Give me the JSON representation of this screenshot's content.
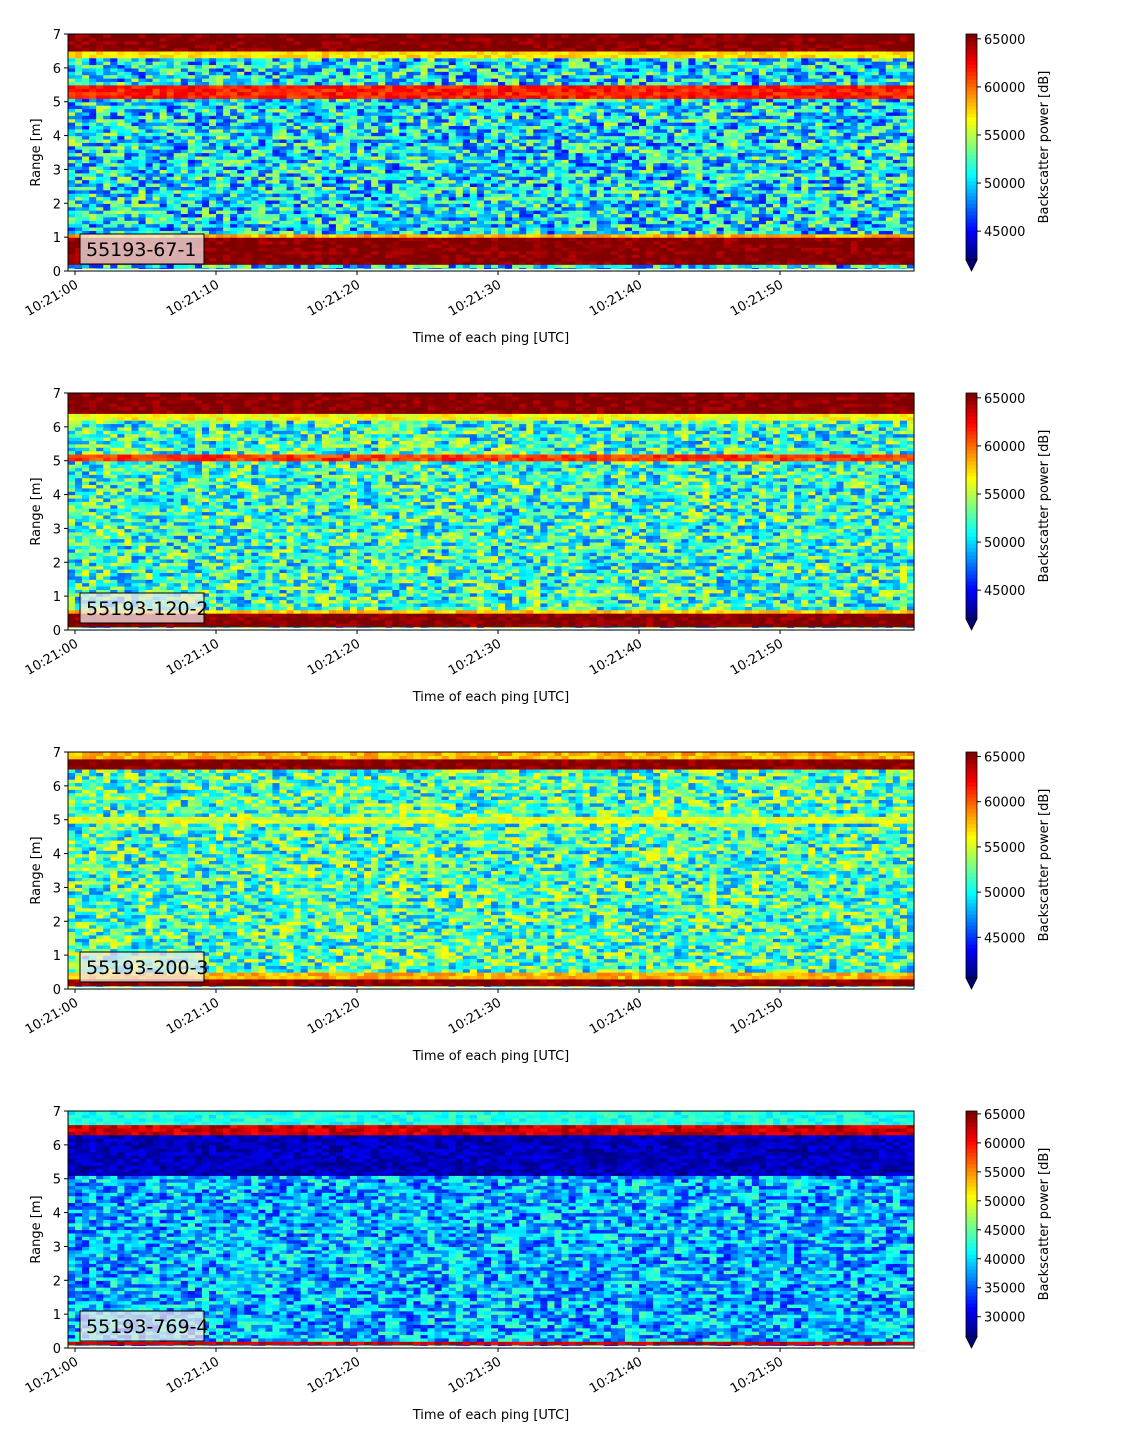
{
  "colors": {
    "jet_low": "#00007f",
    "jet_blue": "#0000ff",
    "jet_cyan": "#00ffff",
    "jet_yellow": "#ffff00",
    "jet_red": "#ff0000",
    "jet_high": "#7f0000",
    "label_box_bg": "#f3e8e8"
  },
  "chart_data": [
    {
      "type": "heatmap",
      "panel_label": "55193-67-1",
      "xlabel": "Time of each ping [UTC]",
      "ylabel": "Range [m]",
      "x_ticks": [
        "10:21:00",
        "10:21:10",
        "10:21:20",
        "10:21:30",
        "10:21:40",
        "10:21:50"
      ],
      "xlim_seconds_past": [
        0,
        59.5
      ],
      "ylim": [
        0,
        7
      ],
      "y_ticks": [
        0,
        1,
        2,
        3,
        4,
        5,
        6,
        7
      ],
      "colorbar": {
        "label": "Backscatter power [dB]",
        "ticks": [
          45000,
          50000,
          55000,
          60000,
          65000
        ],
        "range": [
          42000,
          65500
        ],
        "extend": "min"
      },
      "bands": [
        {
          "from": 0.25,
          "to": 1.05,
          "level": 1.0
        },
        {
          "from": 1.05,
          "to": 1.15,
          "level": 0.7
        },
        {
          "from": 5.15,
          "to": 5.55,
          "level": 0.85
        },
        {
          "from": 6.45,
          "to": 7.0,
          "level": 1.0
        },
        {
          "from": 6.3,
          "to": 6.45,
          "level": 0.65
        }
      ],
      "background_mean": 0.36,
      "background_spread": 0.22
    },
    {
      "type": "heatmap",
      "panel_label": "55193-120-2",
      "xlabel": "Time of each ping [UTC]",
      "ylabel": "Range [m]",
      "x_ticks": [
        "10:21:00",
        "10:21:10",
        "10:21:20",
        "10:21:30",
        "10:21:40",
        "10:21:50"
      ],
      "xlim_seconds_past": [
        0,
        59.5
      ],
      "ylim": [
        0,
        7
      ],
      "y_ticks": [
        0,
        1,
        2,
        3,
        4,
        5,
        6,
        7
      ],
      "colorbar": {
        "label": "Backscatter power [dB]",
        "ticks": [
          45000,
          50000,
          55000,
          60000,
          65000
        ],
        "range": [
          42000,
          65500
        ],
        "extend": "min"
      },
      "bands": [
        {
          "from": 0.1,
          "to": 0.5,
          "level": 1.0
        },
        {
          "from": 0.5,
          "to": 0.65,
          "level": 0.68
        },
        {
          "from": 5.0,
          "to": 5.2,
          "level": 0.82
        },
        {
          "from": 6.4,
          "to": 7.0,
          "level": 1.0
        },
        {
          "from": 6.2,
          "to": 6.4,
          "level": 0.62
        }
      ],
      "background_mean": 0.42,
      "background_spread": 0.2
    },
    {
      "type": "heatmap",
      "panel_label": "55193-200-3",
      "xlabel": "Time of each ping [UTC]",
      "ylabel": "Range [m]",
      "x_ticks": [
        "10:21:00",
        "10:21:10",
        "10:21:20",
        "10:21:30",
        "10:21:40",
        "10:21:50"
      ],
      "xlim_seconds_past": [
        0,
        59.5
      ],
      "ylim": [
        0,
        7
      ],
      "y_ticks": [
        0,
        1,
        2,
        3,
        4,
        5,
        6,
        7
      ],
      "colorbar": {
        "label": "Backscatter power [dB]",
        "ticks": [
          45000,
          50000,
          55000,
          60000,
          65000
        ],
        "range": [
          40500,
          65500
        ],
        "extend": "min"
      },
      "bands": [
        {
          "from": 0.1,
          "to": 0.3,
          "level": 1.0
        },
        {
          "from": 0.3,
          "to": 0.5,
          "level": 0.7
        },
        {
          "from": 6.5,
          "to": 6.85,
          "level": 1.0
        },
        {
          "from": 6.85,
          "to": 7.0,
          "level": 0.7
        },
        {
          "from": 4.95,
          "to": 5.15,
          "level": 0.6
        }
      ],
      "background_mean": 0.44,
      "background_spread": 0.2
    },
    {
      "type": "heatmap",
      "panel_label": "55193-769-4",
      "xlabel": "Time of each ping [UTC]",
      "ylabel": "Range [m]",
      "x_ticks": [
        "10:21:00",
        "10:21:10",
        "10:21:20",
        "10:21:30",
        "10:21:40",
        "10:21:50"
      ],
      "xlim_seconds_past": [
        0,
        59.5
      ],
      "ylim": [
        0,
        7
      ],
      "y_ticks": [
        0,
        1,
        2,
        3,
        4,
        5,
        6,
        7
      ],
      "colorbar": {
        "label": "Backscatter power [dB]",
        "ticks": [
          30000,
          35000,
          40000,
          45000,
          50000,
          55000,
          60000,
          65000
        ],
        "range": [
          26500,
          65500
        ],
        "extend": "min"
      },
      "bands": [
        {
          "from": 0.1,
          "to": 0.25,
          "level": 0.92
        },
        {
          "from": 6.35,
          "to": 6.6,
          "level": 0.92
        },
        {
          "from": 6.6,
          "to": 7.0,
          "level": 0.4
        },
        {
          "from": 5.15,
          "to": 6.35,
          "level": 0.06
        }
      ],
      "background_mean": 0.3,
      "background_spread": 0.16
    }
  ]
}
